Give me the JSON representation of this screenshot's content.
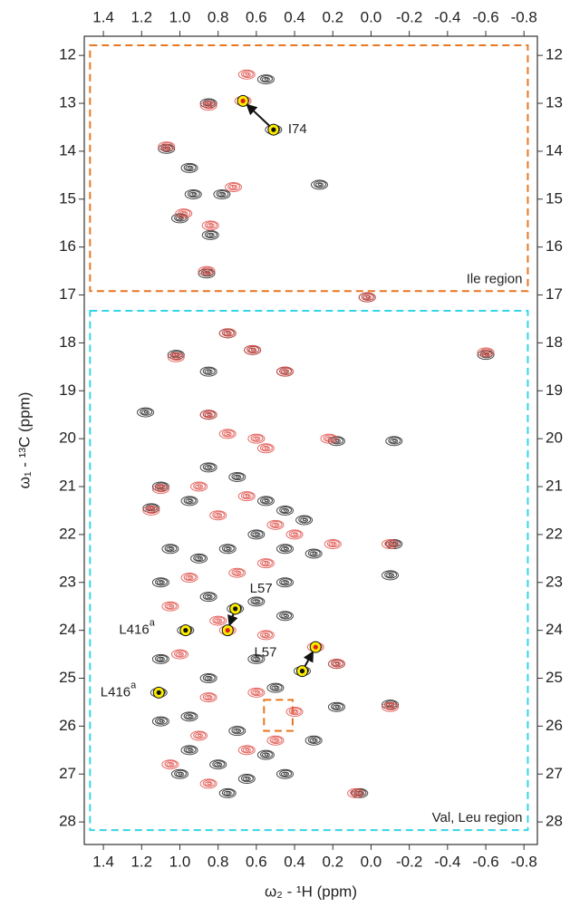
{
  "chart_data": {
    "type": "scatter",
    "x_label": "ω₂ - ¹H  (ppm)",
    "y_label": "ω₁ - ¹³C  (ppm)",
    "xlim": [
      1.5,
      -0.87
    ],
    "ylim": [
      11.6,
      28.47
    ],
    "xticks": [
      1.4,
      1.2,
      {
        "value": 1,
        "label": "1.0"
      },
      0.8,
      0.6,
      0.4,
      0.2,
      {
        "value": 0,
        "label": "0.0"
      },
      -0.2,
      -0.4,
      -0.6,
      -0.8
    ],
    "yticks": [
      12,
      13,
      14,
      15,
      16,
      17,
      18,
      19,
      20,
      21,
      22,
      23,
      24,
      25,
      26,
      27,
      28
    ],
    "series": [
      {
        "color": "#333333",
        "x": [
          0.51,
          0.85,
          0.55,
          1.07,
          0.95,
          0.78,
          0.93,
          1.0,
          0.84,
          0.86,
          0.27,
          0.02,
          0.75,
          1.02,
          0.62,
          0.45,
          0.85,
          0.85,
          1.18,
          0.18,
          -0.12,
          -0.6,
          -0.12,
          -0.1,
          -0.1,
          0.18,
          0.18,
          0.06,
          1.1,
          1.15,
          0.95,
          0.85,
          0.7,
          0.55,
          0.45,
          0.35,
          0.3,
          0.45,
          0.6,
          0.75,
          0.9,
          1.05,
          1.1,
          0.85,
          0.6,
          0.45,
          0.45,
          0.71,
          0.97,
          0.36,
          1.11,
          1.1,
          0.85,
          0.6,
          0.5,
          0.95,
          0.7,
          0.55,
          0.8,
          1.0,
          0.75,
          0.3,
          0.45,
          1.1,
          0.95,
          0.65
        ],
        "y": [
          13.55,
          13.0,
          12.5,
          13.95,
          14.35,
          14.9,
          14.9,
          15.4,
          15.75,
          16.55,
          14.7,
          17.05,
          17.8,
          18.25,
          18.15,
          18.6,
          18.6,
          19.5,
          19.45,
          20.05,
          20.05,
          18.25,
          22.2,
          22.85,
          25.55,
          24.7,
          25.6,
          27.4,
          21.0,
          21.45,
          21.3,
          20.6,
          20.8,
          21.3,
          21.5,
          21.7,
          22.4,
          22.3,
          22.0,
          22.3,
          22.5,
          22.3,
          23.0,
          23.3,
          23.4,
          23.0,
          23.7,
          23.55,
          24.0,
          24.85,
          25.3,
          24.6,
          25.0,
          24.6,
          25.2,
          25.8,
          26.1,
          26.6,
          26.8,
          27.0,
          27.4,
          26.3,
          27.0,
          25.9,
          26.5,
          27.1
        ]
      },
      {
        "color": "#e0504a",
        "x": [
          0.67,
          0.65,
          0.85,
          1.07,
          0.72,
          0.84,
          0.98,
          0.86,
          0.02,
          0.75,
          0.62,
          0.45,
          1.02,
          0.85,
          0.75,
          0.6,
          0.22,
          -0.6,
          0.55,
          1.1,
          1.15,
          0.9,
          0.8,
          0.65,
          0.5,
          0.4,
          0.55,
          0.7,
          0.95,
          1.05,
          0.8,
          0.75,
          0.29,
          0.55,
          1.0,
          0.85,
          0.6,
          0.4,
          0.9,
          0.65,
          0.85,
          0.5,
          1.05,
          0.2,
          -0.1,
          0.18,
          0.08,
          -0.1
        ],
        "y": [
          12.95,
          12.4,
          13.05,
          13.9,
          14.75,
          15.55,
          15.3,
          16.5,
          17.05,
          17.8,
          18.15,
          18.6,
          18.3,
          19.5,
          19.9,
          20.0,
          20.0,
          18.2,
          20.2,
          21.05,
          21.5,
          21.0,
          21.6,
          21.2,
          21.8,
          22.0,
          22.6,
          22.8,
          22.9,
          23.5,
          23.8,
          24.0,
          24.35,
          24.1,
          24.5,
          25.4,
          25.3,
          25.7,
          26.2,
          26.5,
          27.2,
          26.3,
          26.8,
          22.2,
          22.2,
          24.7,
          27.4,
          25.6
        ]
      }
    ],
    "regions": [
      {
        "label": "Ile region",
        "color": "#e87722",
        "xrange": [
          1.47,
          -0.82
        ],
        "yrange": [
          11.79,
          16.92
        ]
      },
      {
        "label": "Val, Leu region",
        "color": "#33d6e6",
        "xrange": [
          1.47,
          -0.82
        ],
        "yrange": [
          17.33,
          28.17
        ]
      },
      {
        "color": "#e87722",
        "xrange": [
          0.56,
          0.41
        ],
        "yrange": [
          25.45,
          26.1
        ]
      }
    ],
    "annotations": [
      {
        "text": "I74",
        "x": [
          0.51,
          0.67
        ],
        "y": [
          13.55,
          12.95
        ]
      },
      {
        "text": "L57",
        "x": [
          0.71,
          0.75
        ],
        "y": [
          23.55,
          24.0
        ]
      },
      {
        "text": "L416",
        "sup": "a",
        "x": [
          0.97
        ],
        "y": [
          24.0
        ]
      },
      {
        "text": "L57",
        "x": [
          0.36,
          0.29
        ],
        "y": [
          24.85,
          24.35
        ]
      },
      {
        "text": "L416",
        "sup": "a",
        "x": [
          1.11
        ],
        "y": [
          25.3
        ]
      }
    ]
  }
}
